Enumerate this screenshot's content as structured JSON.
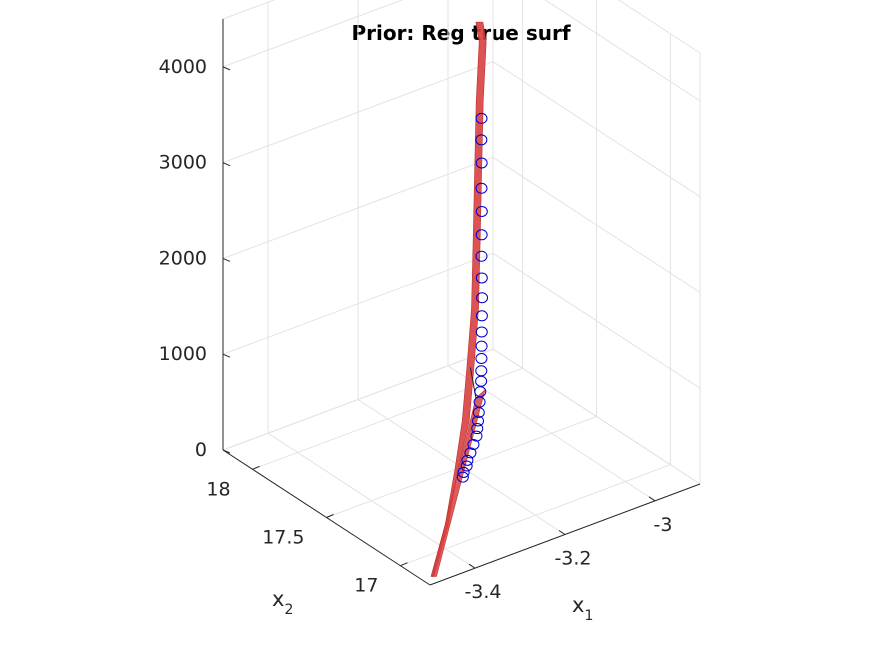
{
  "chart_data": {
    "type": "scatter3d",
    "title": "Prior: Reg true surf",
    "xlabel": "x",
    "xlabel_sub": "1",
    "ylabel": "x",
    "ylabel_sub": "2",
    "zlabel": "",
    "xlim": [
      -3.5,
      -2.9
    ],
    "ylim": [
      16.8,
      18.2
    ],
    "zlim": [
      0,
      4500
    ],
    "x_ticks": [
      -3.4,
      -3.2,
      -3
    ],
    "x_tick_labels": [
      "-3.4",
      "-3.2",
      "-3"
    ],
    "y_ticks": [
      17,
      17.5,
      18
    ],
    "y_tick_labels": [
      "17",
      "17.5",
      "18"
    ],
    "z_ticks": [
      0,
      1000,
      2000,
      3000,
      4000
    ],
    "z_tick_labels": [
      "0",
      "1000",
      "2000",
      "3000",
      "4000"
    ],
    "grid": true,
    "colors": {
      "surface": "#d94040",
      "markers": "#0000cc",
      "grid": "#e3e3e3",
      "axis": "#262626"
    },
    "series": [
      {
        "type": "surface",
        "points": [
          {
            "x": -3.478,
            "y": 16.85,
            "z": 0
          },
          {
            "x": -3.38,
            "y": 17.05,
            "z": 180
          },
          {
            "x": -3.3,
            "y": 17.23,
            "z": 420
          },
          {
            "x": -3.24,
            "y": 17.35,
            "z": 700
          },
          {
            "x": -3.2,
            "y": 17.44,
            "z": 1100
          },
          {
            "x": -3.17,
            "y": 17.5,
            "z": 1600
          },
          {
            "x": -3.15,
            "y": 17.55,
            "z": 2200
          },
          {
            "x": -3.14,
            "y": 17.57,
            "z": 2900
          },
          {
            "x": -3.13,
            "y": 17.59,
            "z": 3600
          },
          {
            "x": -3.12,
            "y": 17.6,
            "z": 4200
          },
          {
            "x": -3.124,
            "y": 17.61,
            "z": 4400
          }
        ]
      },
      {
        "type": "scatter",
        "marker": "circle",
        "points": [
          {
            "x": -3.22,
            "y": 17.43,
            "z": 0
          },
          {
            "x": -3.215,
            "y": 17.44,
            "z": 30
          },
          {
            "x": -3.205,
            "y": 17.45,
            "z": 70
          },
          {
            "x": -3.2,
            "y": 17.46,
            "z": 110
          },
          {
            "x": -3.19,
            "y": 17.47,
            "z": 160
          },
          {
            "x": -3.18,
            "y": 17.48,
            "z": 220
          },
          {
            "x": -3.17,
            "y": 17.49,
            "z": 280
          },
          {
            "x": -3.165,
            "y": 17.5,
            "z": 340
          },
          {
            "x": -3.16,
            "y": 17.51,
            "z": 400
          },
          {
            "x": -3.155,
            "y": 17.52,
            "z": 470
          },
          {
            "x": -3.15,
            "y": 17.53,
            "z": 560
          },
          {
            "x": -3.145,
            "y": 17.54,
            "z": 650
          },
          {
            "x": -3.14,
            "y": 17.55,
            "z": 740
          },
          {
            "x": -3.138,
            "y": 17.555,
            "z": 840
          },
          {
            "x": -3.136,
            "y": 17.56,
            "z": 960
          },
          {
            "x": -3.134,
            "y": 17.565,
            "z": 1080
          },
          {
            "x": -3.132,
            "y": 17.57,
            "z": 1220
          },
          {
            "x": -3.13,
            "y": 17.575,
            "z": 1380
          },
          {
            "x": -3.128,
            "y": 17.58,
            "z": 1560
          },
          {
            "x": -3.127,
            "y": 17.585,
            "z": 1760
          },
          {
            "x": -3.126,
            "y": 17.59,
            "z": 1980
          },
          {
            "x": -3.125,
            "y": 17.592,
            "z": 2200
          },
          {
            "x": -3.124,
            "y": 17.594,
            "z": 2440
          },
          {
            "x": -3.124,
            "y": 17.596,
            "z": 2680
          },
          {
            "x": -3.123,
            "y": 17.598,
            "z": 2940
          },
          {
            "x": -3.123,
            "y": 17.6,
            "z": 3180
          },
          {
            "x": -3.122,
            "y": 17.602,
            "z": 3400
          }
        ]
      }
    ]
  }
}
